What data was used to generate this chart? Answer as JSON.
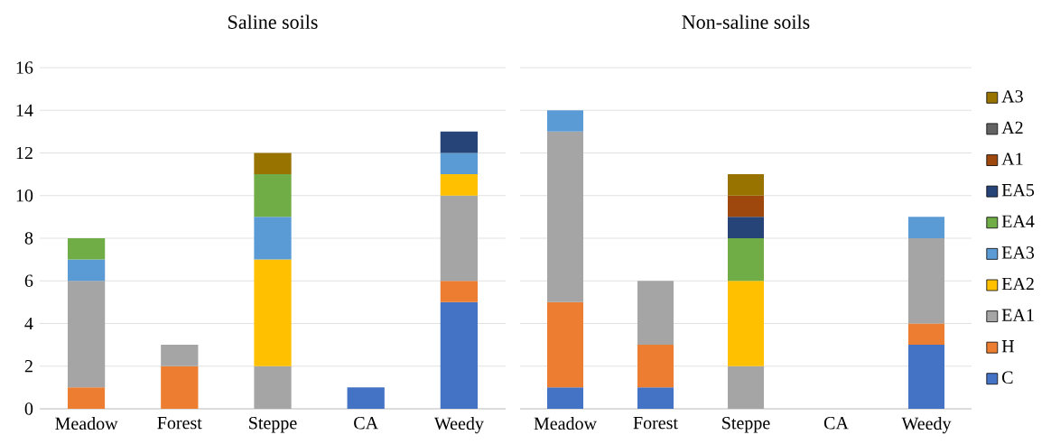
{
  "chart_data": [
    {
      "type": "bar",
      "title": "Saline soils",
      "stacked": true,
      "categories": [
        "Meadow",
        "Forest",
        "Steppe",
        "CA",
        "Weedy"
      ],
      "ylim": [
        0,
        16
      ],
      "yticks": [
        0,
        2,
        4,
        6,
        8,
        10,
        12,
        14,
        16
      ],
      "grid": "y",
      "legend": false,
      "series": [
        {
          "color": "#4472c4",
          "values": [
            0,
            0,
            0,
            1,
            5
          ]
        },
        {
          "color": "#ed7d31",
          "values": [
            1,
            2,
            0,
            0,
            1
          ]
        },
        {
          "color": "#a5a5a5",
          "values": [
            5,
            1,
            2,
            0,
            4
          ]
        },
        {
          "color": "#ffc000",
          "values": [
            0,
            0,
            5,
            0,
            1
          ]
        },
        {
          "color": "#5b9bd5",
          "values": [
            1,
            0,
            2,
            0,
            1
          ]
        },
        {
          "color": "#70ad47",
          "values": [
            1,
            0,
            2,
            0,
            0
          ]
        },
        {
          "color": "#264478",
          "values": [
            0,
            0,
            0,
            0,
            1
          ]
        },
        {
          "color": "#9e480e",
          "values": [
            0,
            0,
            0,
            0,
            0
          ]
        },
        {
          "color": "#636363",
          "values": [
            0,
            0,
            0,
            0,
            0
          ]
        },
        {
          "color": "#997300",
          "values": [
            0,
            0,
            1,
            0,
            0
          ]
        }
      ]
    },
    {
      "type": "bar",
      "title": "Non-saline soils",
      "stacked": true,
      "categories": [
        "Meadow",
        "Forest",
        "Steppe",
        "CA",
        "Weedy"
      ],
      "ylim": [
        0,
        16
      ],
      "yticks": [
        0,
        2,
        4,
        6,
        8,
        10,
        12,
        14,
        16
      ],
      "grid": "y",
      "legend": "right",
      "tick_labels": "x",
      "series": [
        {
          "name": "C",
          "color": "#4472c4",
          "values": [
            1,
            1,
            0,
            0,
            3
          ]
        },
        {
          "name": "H",
          "color": "#ed7d31",
          "values": [
            4,
            2,
            0,
            0,
            1
          ]
        },
        {
          "name": "EA1",
          "color": "#a5a5a5",
          "values": [
            8,
            3,
            2,
            0,
            4
          ]
        },
        {
          "name": "EA2",
          "color": "#ffc000",
          "values": [
            0,
            0,
            4,
            0,
            0
          ]
        },
        {
          "name": "EA3",
          "color": "#5b9bd5",
          "values": [
            1,
            0,
            0,
            0,
            1
          ]
        },
        {
          "name": "EA4",
          "color": "#70ad47",
          "values": [
            0,
            0,
            2,
            0,
            0
          ]
        },
        {
          "name": "EA5",
          "color": "#264478",
          "values": [
            0,
            0,
            1,
            0,
            0
          ]
        },
        {
          "name": "A1",
          "color": "#9e480e",
          "values": [
            0,
            0,
            1,
            0,
            0
          ]
        },
        {
          "name": "A2",
          "color": "#636363",
          "values": [
            0,
            0,
            0,
            0,
            0
          ]
        },
        {
          "name": "A3",
          "color": "#997300",
          "values": [
            0,
            0,
            1,
            0,
            0
          ]
        }
      ]
    }
  ]
}
